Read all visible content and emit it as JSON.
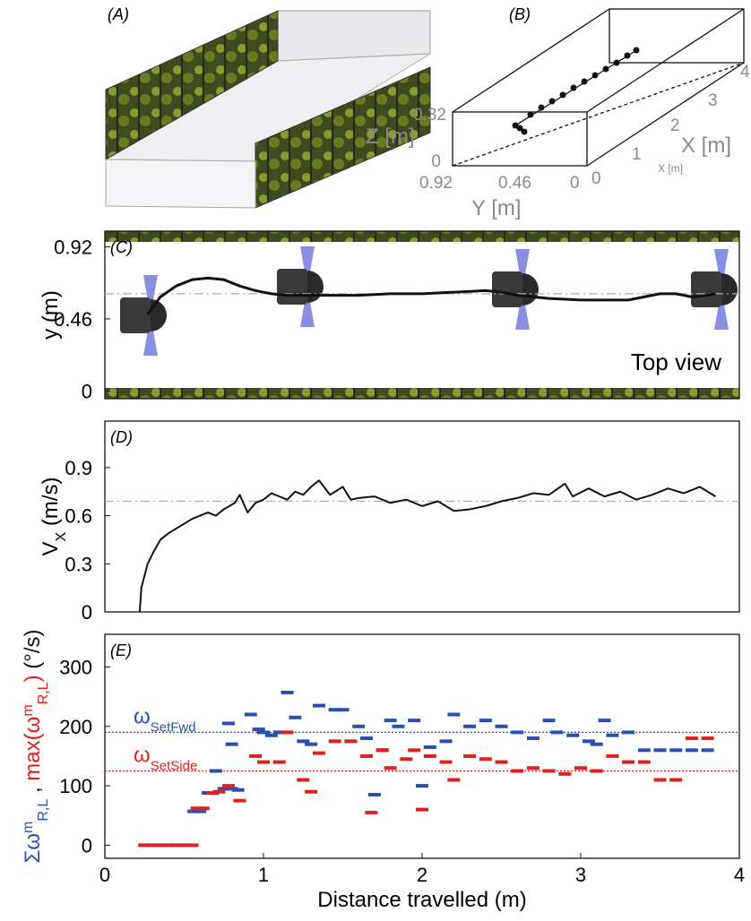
{
  "panel_a": {
    "label": "(A)"
  },
  "panel_b": {
    "label": "(B)",
    "z_label": "Z [m]",
    "z_ticks": [
      0,
      0.32
    ],
    "y_label": "Y [m]",
    "y_ticks": [
      0.92,
      0.46,
      0
    ],
    "x_label": "X [m]",
    "x_ticks": [
      0,
      1,
      2,
      3,
      4
    ],
    "x_label_small": "X [m]"
  },
  "chart_data": [
    {
      "type": "line",
      "panel_label": "(C)",
      "annotation": "Top view",
      "ylabel": "y (m)",
      "xlim": [
        0,
        4
      ],
      "ylim": [
        -0.05,
        1.02
      ],
      "yticks": [
        0,
        0.46,
        0.92
      ],
      "color": "#111111",
      "reference_line": {
        "value": 0.62,
        "color": "#aaaaaa",
        "style": "dashdot"
      },
      "x": [
        0.27,
        0.35,
        0.45,
        0.55,
        0.65,
        0.75,
        0.85,
        0.95,
        1.05,
        1.15,
        1.25,
        1.4,
        1.6,
        1.8,
        2.0,
        2.2,
        2.4,
        2.5,
        2.6,
        2.8,
        3.0,
        3.2,
        3.3,
        3.4,
        3.5,
        3.6,
        3.7,
        3.8,
        3.85
      ],
      "values": [
        0.49,
        0.6,
        0.67,
        0.71,
        0.72,
        0.71,
        0.67,
        0.64,
        0.62,
        0.61,
        0.61,
        0.61,
        0.61,
        0.62,
        0.62,
        0.63,
        0.64,
        0.63,
        0.61,
        0.59,
        0.58,
        0.58,
        0.58,
        0.6,
        0.62,
        0.62,
        0.6,
        0.61,
        0.62
      ]
    },
    {
      "type": "line",
      "panel_label": "(D)",
      "ylabel": [
        {
          "text": "V"
        },
        {
          "text": "X",
          "pos": "sub"
        },
        {
          "text": " (m/s)"
        }
      ],
      "xlim": [
        0,
        4
      ],
      "ylim": [
        0,
        1.19
      ],
      "yticks": [
        0,
        0.3,
        0.6,
        0.9
      ],
      "color": "#111111",
      "reference_line": {
        "value": 0.69,
        "color": "#aaaaaa",
        "style": "dashdot"
      },
      "x": [
        0.22,
        0.23,
        0.27,
        0.31,
        0.35,
        0.4,
        0.45,
        0.5,
        0.55,
        0.6,
        0.65,
        0.7,
        0.75,
        0.82,
        0.85,
        0.9,
        0.95,
        1.0,
        1.05,
        1.1,
        1.15,
        1.2,
        1.25,
        1.3,
        1.35,
        1.42,
        1.5,
        1.55,
        1.6,
        1.7,
        1.8,
        1.9,
        2.0,
        2.1,
        2.2,
        2.3,
        2.4,
        2.5,
        2.6,
        2.7,
        2.8,
        2.9,
        2.95,
        3.05,
        3.15,
        3.25,
        3.35,
        3.45,
        3.55,
        3.65,
        3.75,
        3.85
      ],
      "values": [
        0,
        0.15,
        0.3,
        0.38,
        0.45,
        0.49,
        0.52,
        0.55,
        0.58,
        0.6,
        0.62,
        0.6,
        0.64,
        0.68,
        0.73,
        0.62,
        0.68,
        0.7,
        0.74,
        0.72,
        0.7,
        0.75,
        0.73,
        0.78,
        0.82,
        0.73,
        0.78,
        0.7,
        0.71,
        0.72,
        0.68,
        0.7,
        0.66,
        0.69,
        0.63,
        0.64,
        0.66,
        0.69,
        0.71,
        0.74,
        0.73,
        0.8,
        0.72,
        0.77,
        0.72,
        0.75,
        0.7,
        0.73,
        0.77,
        0.74,
        0.78,
        0.72
      ]
    },
    {
      "type": "scatter",
      "panel_label": "(E)",
      "xlabel": "Distance travelled (m)",
      "ylabel": [
        {
          "text": "Σω",
          "color": "#2b4fb0"
        },
        {
          "text": "m",
          "pos": "sup",
          "color": "#2b4fb0"
        },
        {
          "text": "R,L",
          "pos": "sub",
          "color": "#2b4fb0"
        },
        {
          "text": " , ",
          "color": "#111111"
        },
        {
          "text": "max(ω",
          "color": "#e02020"
        },
        {
          "text": "m",
          "pos": "sup",
          "color": "#e02020"
        },
        {
          "text": "R,L",
          "pos": "sub",
          "color": "#e02020"
        },
        {
          "text": ")",
          "color": "#e02020"
        },
        {
          "text": " (°/s)",
          "color": "#111111"
        }
      ],
      "xlim": [
        0,
        4
      ],
      "xticks": [
        0,
        1,
        2,
        3,
        4
      ],
      "ylim": [
        -22,
        355
      ],
      "yticks": [
        0,
        100,
        200,
        300
      ],
      "reference_lines": [
        {
          "value": 190,
          "color": "#2b4fb0",
          "style": "dotted",
          "symbol": "ω",
          "subscript": "SetFwd"
        },
        {
          "value": 125,
          "color": "#e02020",
          "style": "dotted",
          "symbol": "ω",
          "subscript": "SetSide"
        }
      ],
      "series": [
        {
          "name": "Σω",
          "color": "#2b4fb0",
          "x": [
            0.56,
            0.6,
            0.65,
            0.7,
            0.75,
            0.8,
            0.84,
            0.78,
            0.8,
            0.92,
            0.97,
            1.0,
            1.05,
            1.1,
            1.15,
            1.2,
            1.25,
            1.3,
            1.35,
            1.45,
            1.5,
            1.6,
            1.65,
            1.7,
            1.75,
            1.8,
            1.85,
            1.95,
            2.0,
            2.05,
            2.15,
            2.2,
            2.3,
            2.4,
            2.5,
            2.6,
            2.7,
            2.8,
            2.85,
            2.95,
            3.05,
            3.1,
            3.15,
            3.2,
            3.3,
            3.4,
            3.5,
            3.6,
            3.7,
            3.8
          ],
          "values": [
            57,
            57,
            88,
            125,
            95,
            95,
            93,
            205,
            170,
            220,
            195,
            190,
            185,
            190,
            257,
            215,
            175,
            170,
            235,
            228,
            228,
            200,
            180,
            85,
            160,
            210,
            200,
            210,
            100,
            165,
            175,
            220,
            200,
            210,
            200,
            190,
            180,
            210,
            190,
            185,
            175,
            170,
            210,
            185,
            190,
            160,
            160,
            160,
            160,
            160
          ]
        },
        {
          "name": "max(ω)",
          "color": "#e02020",
          "x": [
            0.25,
            0.3,
            0.35,
            0.4,
            0.45,
            0.5,
            0.55,
            0.58,
            0.62,
            0.68,
            0.72,
            0.78,
            0.85,
            0.95,
            1.0,
            1.1,
            1.15,
            1.25,
            1.3,
            1.35,
            1.45,
            1.55,
            1.65,
            1.68,
            1.75,
            1.8,
            1.9,
            1.95,
            2.0,
            2.05,
            2.15,
            2.2,
            2.3,
            2.4,
            2.5,
            2.6,
            2.7,
            2.8,
            2.9,
            3.0,
            3.1,
            3.2,
            3.3,
            3.4,
            3.5,
            3.6,
            3.7,
            3.8
          ],
          "values": [
            0,
            0,
            0,
            0,
            0,
            0,
            0,
            62,
            62,
            88,
            90,
            100,
            75,
            150,
            140,
            140,
            190,
            110,
            90,
            155,
            175,
            175,
            150,
            55,
            160,
            130,
            145,
            160,
            60,
            150,
            140,
            110,
            150,
            145,
            140,
            125,
            130,
            125,
            120,
            130,
            125,
            150,
            140,
            140,
            110,
            110,
            180,
            180
          ]
        }
      ]
    }
  ]
}
